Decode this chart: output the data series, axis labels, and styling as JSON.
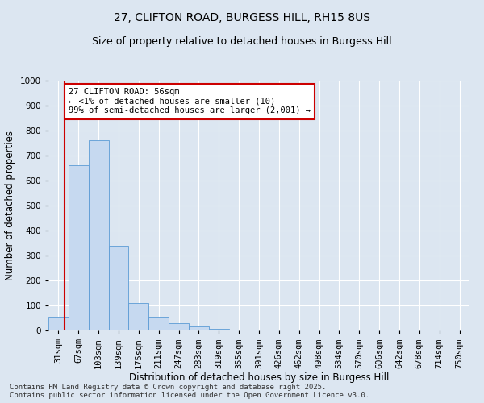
{
  "title": "27, CLIFTON ROAD, BURGESS HILL, RH15 8US",
  "subtitle": "Size of property relative to detached houses in Burgess Hill",
  "xlabel": "Distribution of detached houses by size in Burgess Hill",
  "ylabel": "Number of detached properties",
  "footer1": "Contains HM Land Registry data © Crown copyright and database right 2025.",
  "footer2": "Contains public sector information licensed under the Open Government Licence v3.0.",
  "bar_labels": [
    "31sqm",
    "67sqm",
    "103sqm",
    "139sqm",
    "175sqm",
    "211sqm",
    "247sqm",
    "283sqm",
    "319sqm",
    "355sqm",
    "391sqm",
    "426sqm",
    "462sqm",
    "498sqm",
    "534sqm",
    "570sqm",
    "606sqm",
    "642sqm",
    "678sqm",
    "714sqm",
    "750sqm"
  ],
  "bar_values": [
    55,
    660,
    760,
    340,
    110,
    55,
    30,
    15,
    8,
    0,
    0,
    0,
    0,
    0,
    0,
    0,
    0,
    0,
    0,
    0,
    0
  ],
  "bar_color": "#c6d9f0",
  "bar_edge_color": "#5b9bd5",
  "background_color": "#dce6f1",
  "grid_color": "#ffffff",
  "ylim": [
    0,
    1000
  ],
  "yticks": [
    0,
    100,
    200,
    300,
    400,
    500,
    600,
    700,
    800,
    900,
    1000
  ],
  "red_line_x": 0.3,
  "annotation_title": "27 CLIFTON ROAD: 56sqm",
  "annotation_line1": "← <1% of detached houses are smaller (10)",
  "annotation_line2": "99% of semi-detached houses are larger (2,001) →",
  "annotation_box_color": "#ffffff",
  "annotation_edge_color": "#cc0000",
  "title_fontsize": 10,
  "subtitle_fontsize": 9,
  "axis_label_fontsize": 8.5,
  "tick_fontsize": 7.5,
  "annotation_fontsize": 7.5,
  "footer_fontsize": 6.5
}
